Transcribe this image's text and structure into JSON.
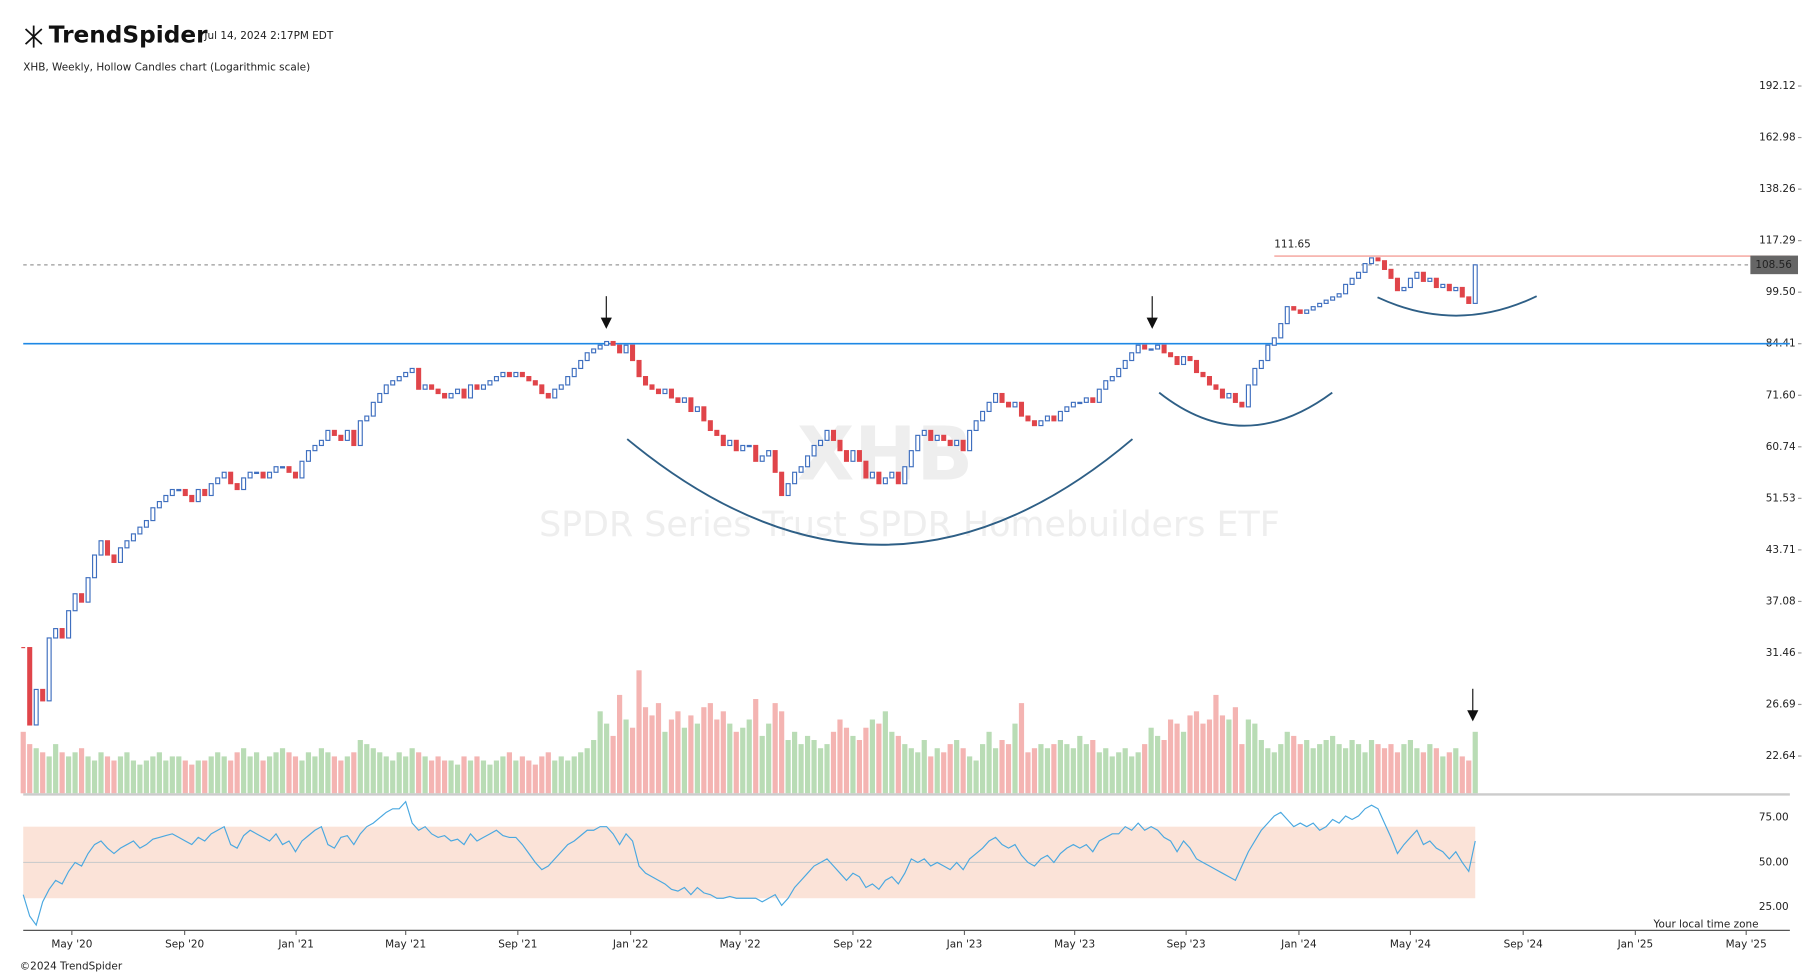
{
  "header": {
    "logo": "TrendSpider",
    "timestamp": "Jul 14, 2024 2:17PM EDT"
  },
  "footer": {
    "copyright": "©2024 TrendSpider",
    "timezone": "Your local time zone"
  },
  "chart_data": [
    {
      "type": "candlestick",
      "title": "XHB, Weekly, Hollow Candles chart (Logarithmic scale)",
      "watermark": "XHB",
      "subtitle": "SPDR Series Trust SPDR Homebuilders ETF",
      "log_scale": true,
      "up_color": "#3f6fbf",
      "down_color": "#e0454a",
      "xlim": [
        0,
        272
      ],
      "xticks": [
        {
          "value": 7.5,
          "label": "May '20"
        },
        {
          "value": 24.9,
          "label": "Sep '20"
        },
        {
          "value": 42.1,
          "label": "Jan '21"
        },
        {
          "value": 59,
          "label": "May '21"
        },
        {
          "value": 76.3,
          "label": "Sep '21"
        },
        {
          "value": 93.7,
          "label": "Jan '22"
        },
        {
          "value": 110.6,
          "label": "May '22"
        },
        {
          "value": 128,
          "label": "Sep '22"
        },
        {
          "value": 145.2,
          "label": "Jan '23"
        },
        {
          "value": 162.2,
          "label": "May '23"
        },
        {
          "value": 179.4,
          "label": "Sep '23"
        },
        {
          "value": 196.8,
          "label": "Jan '24"
        },
        {
          "value": 214,
          "label": "May '24"
        },
        {
          "value": 231.4,
          "label": "Sep '24"
        },
        {
          "value": 248.7,
          "label": "Jan '25"
        },
        {
          "value": 265.8,
          "label": "May '25"
        }
      ],
      "ylim": [
        20.1,
        202.4
      ],
      "yticks": [
        22.64,
        26.69,
        31.46,
        37.08,
        43.71,
        51.53,
        60.74,
        {
          "value": 71.6,
          "label": "71.60"
        },
        84.41,
        {
          "value": 99.5,
          "label": "99.50"
        },
        117.29,
        138.26,
        162.98,
        192.12
      ],
      "reference_lines": [
        {
          "value": 84.41,
          "color": "#1e88e5"
        },
        {
          "value": 111.65,
          "color": "#f28b82"
        }
      ],
      "close": [
        32,
        25,
        28,
        27,
        33,
        34,
        33,
        36,
        38,
        37,
        40,
        43,
        45,
        43,
        42,
        44,
        45,
        46,
        47,
        48,
        50,
        51,
        52,
        53,
        53,
        52,
        51,
        53,
        52,
        54,
        55,
        56,
        54,
        53,
        55,
        56,
        56,
        55,
        56,
        57,
        57,
        56,
        55,
        58,
        60,
        61,
        62,
        64,
        63,
        62,
        64,
        61,
        66,
        67,
        70,
        72,
        74,
        75,
        76,
        77,
        78,
        73,
        74,
        73,
        72,
        71,
        72,
        73,
        71,
        74,
        73,
        74,
        75,
        76,
        77,
        76,
        77,
        76,
        75,
        74,
        72,
        71,
        73,
        74,
        76,
        78,
        80,
        82,
        83,
        84,
        85,
        84,
        82,
        84,
        80,
        76,
        74,
        73,
        72,
        73,
        71,
        70,
        71,
        68,
        69,
        66,
        64,
        63,
        61,
        62,
        60,
        61,
        61,
        58,
        59,
        60,
        56,
        52,
        54,
        56,
        57,
        59,
        61,
        62,
        64,
        62,
        60,
        58,
        60,
        58,
        55,
        56,
        54,
        55,
        56,
        54,
        57,
        60,
        63,
        64,
        62,
        63,
        62,
        61,
        62,
        60,
        64,
        66,
        68,
        70,
        72,
        70,
        69,
        70,
        67,
        66,
        65,
        66,
        67,
        66,
        68,
        69,
        70,
        70,
        71,
        70,
        73,
        75,
        76,
        78,
        80,
        82,
        84,
        83,
        83,
        84,
        82,
        81,
        79,
        81,
        80,
        77,
        76,
        74,
        73,
        71,
        72,
        70,
        69,
        74,
        78,
        80,
        84,
        86,
        90,
        95,
        94,
        93,
        94,
        95,
        96,
        97,
        98,
        99,
        102,
        104,
        106,
        109,
        111,
        110,
        107,
        104,
        100,
        101,
        104,
        106,
        103,
        104,
        101,
        102,
        100,
        101,
        98,
        96,
        108.56
      ]
    },
    {
      "type": "volume",
      "up_color": "#b9dcb5",
      "down_color": "#f4b4b2",
      "ylim": [
        0,
        34
      ],
      "values": [
        15,
        12,
        11,
        10,
        9,
        12,
        10,
        9,
        10,
        11,
        9,
        8,
        10,
        9,
        8,
        9,
        10,
        8,
        7,
        8,
        9,
        10,
        8,
        9,
        9,
        8,
        7,
        8,
        8,
        9,
        10,
        9,
        8,
        10,
        11,
        9,
        10,
        8,
        9,
        10,
        11,
        10,
        9,
        8,
        10,
        9,
        11,
        10,
        9,
        8,
        9,
        10,
        13,
        12,
        11,
        10,
        9,
        8,
        10,
        9,
        11,
        10,
        9,
        8,
        9,
        8,
        8,
        7,
        9,
        8,
        9,
        8,
        7,
        8,
        9,
        10,
        8,
        9,
        8,
        7,
        9,
        10,
        8,
        9,
        8,
        9,
        10,
        11,
        13,
        20,
        17,
        14,
        24,
        18,
        16,
        30,
        21,
        19,
        22,
        15,
        18,
        20,
        16,
        19,
        17,
        21,
        22,
        18,
        20,
        17,
        15,
        16,
        18,
        23,
        14,
        17,
        22,
        20,
        13,
        15,
        12,
        14,
        13,
        11,
        12,
        15,
        18,
        16,
        14,
        13,
        16,
        18,
        17,
        20,
        15,
        14,
        12,
        11,
        10,
        13,
        9,
        11,
        10,
        12,
        13,
        11,
        9,
        8,
        12,
        15,
        11,
        13,
        12,
        17,
        22,
        10,
        11,
        12,
        11,
        12,
        13,
        12,
        11,
        14,
        12,
        13,
        10,
        11,
        9,
        10,
        11,
        9,
        10,
        12,
        16,
        14,
        13,
        18,
        17,
        15,
        19,
        20,
        17,
        18,
        24,
        19,
        18,
        21,
        12,
        18,
        17,
        13,
        11,
        10,
        12,
        15,
        14,
        12,
        13,
        11,
        12,
        13,
        14,
        12,
        11,
        13,
        12,
        10,
        13,
        12,
        11,
        12,
        10,
        12,
        13,
        11,
        10,
        12,
        11,
        9,
        10,
        11,
        9,
        8,
        15
      ]
    },
    {
      "type": "line",
      "color": "#4aa8e0",
      "band": [
        30,
        70
      ],
      "band_color": "#fbe3d8",
      "ylim": [
        12.7,
        86.7
      ],
      "yticks": [
        {
          "value": 75,
          "label": "75.00"
        },
        {
          "value": 50,
          "label": "50.00"
        },
        {
          "value": 25,
          "label": "25.00"
        }
      ],
      "values": [
        32,
        20,
        15,
        28,
        35,
        40,
        38,
        45,
        50,
        48,
        55,
        60,
        62,
        58,
        55,
        58,
        60,
        62,
        58,
        60,
        63,
        64,
        65,
        66,
        64,
        62,
        60,
        64,
        62,
        66,
        68,
        70,
        60,
        58,
        65,
        68,
        66,
        64,
        62,
        66,
        60,
        62,
        56,
        62,
        65,
        68,
        70,
        60,
        58,
        64,
        65,
        60,
        66,
        70,
        72,
        75,
        78,
        80,
        80,
        84,
        72,
        68,
        70,
        66,
        64,
        65,
        62,
        63,
        60,
        66,
        62,
        64,
        66,
        68,
        65,
        64,
        64,
        60,
        55,
        50,
        46,
        48,
        52,
        56,
        60,
        62,
        65,
        68,
        68,
        70,
        70,
        66,
        60,
        66,
        62,
        48,
        44,
        42,
        40,
        38,
        35,
        34,
        36,
        32,
        36,
        33,
        32,
        30,
        30,
        31,
        30,
        30,
        30,
        30,
        28,
        30,
        32,
        26,
        30,
        36,
        40,
        44,
        48,
        50,
        52,
        48,
        44,
        40,
        44,
        42,
        36,
        38,
        35,
        40,
        42,
        38,
        44,
        52,
        50,
        52,
        48,
        50,
        48,
        46,
        50,
        46,
        52,
        55,
        58,
        62,
        64,
        60,
        58,
        60,
        54,
        50,
        48,
        52,
        54,
        50,
        55,
        58,
        60,
        58,
        60,
        56,
        62,
        64,
        66,
        66,
        70,
        68,
        72,
        68,
        70,
        68,
        64,
        62,
        56,
        62,
        58,
        52,
        50,
        48,
        46,
        44,
        42,
        40,
        48,
        56,
        62,
        68,
        72,
        76,
        78,
        74,
        70,
        72,
        70,
        72,
        68,
        70,
        74,
        72,
        76,
        74,
        76,
        80,
        82,
        80,
        72,
        64,
        55,
        60,
        64,
        68,
        60,
        62,
        58,
        56,
        52,
        56,
        50,
        45,
        62
      ]
    }
  ]
}
